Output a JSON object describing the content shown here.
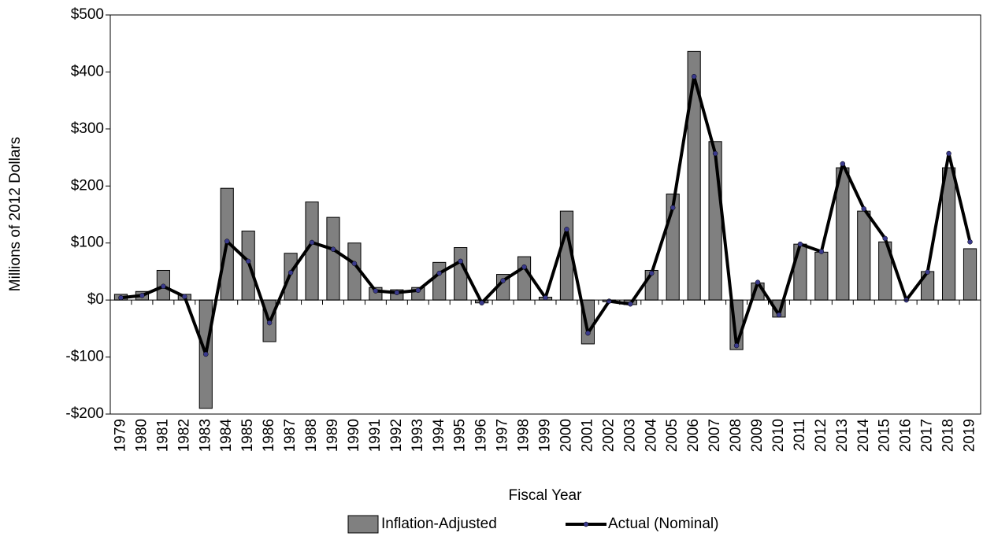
{
  "chart_data": {
    "type": "bar_line",
    "y_label": "Millions of 2012 Dollars",
    "x_label": "Fiscal Year",
    "categories": [
      "1979",
      "1980",
      "1981",
      "1982",
      "1983",
      "1984",
      "1985",
      "1986",
      "1987",
      "1988",
      "1989",
      "1990",
      "1991",
      "1992",
      "1993",
      "1994",
      "1995",
      "1996",
      "1997",
      "1998",
      "1999",
      "2000",
      "2001",
      "2002",
      "2003",
      "2004",
      "2005",
      "2006",
      "2007",
      "2008",
      "2009",
      "2010",
      "2011",
      "2012",
      "2013",
      "2014",
      "2015",
      "2016",
      "2017",
      "2018",
      "2019"
    ],
    "series": [
      {
        "name": "Inflation-Adjusted",
        "type": "bar",
        "color": "#808080",
        "values": [
          10,
          15,
          52,
          10,
          -190,
          196,
          121,
          -73,
          82,
          172,
          145,
          100,
          22,
          18,
          22,
          66,
          92,
          -5,
          45,
          76,
          5,
          156,
          -77,
          -3,
          -8,
          52,
          186,
          436,
          278,
          -87,
          30,
          -30,
          98,
          84,
          232,
          156,
          102,
          0,
          50,
          232,
          90
        ]
      },
      {
        "name": "Actual (Nominal)",
        "type": "line",
        "color": "#000000",
        "marker_color": "#3a3a8c",
        "values": [
          4,
          8,
          24,
          6,
          -95,
          103,
          68,
          -40,
          48,
          101,
          89,
          64,
          16,
          13,
          17,
          47,
          68,
          -5,
          34,
          58,
          4,
          124,
          -58,
          -2,
          -7,
          47,
          162,
          392,
          257,
          -80,
          31,
          -26,
          98,
          85,
          239,
          160,
          108,
          0,
          49,
          257,
          102
        ]
      }
    ],
    "ylim": [
      -200,
      500
    ],
    "yticks": [
      {
        "value": -200,
        "label": "-$200"
      },
      {
        "value": -100,
        "label": "-$100"
      },
      {
        "value": 0,
        "label": "$0"
      },
      {
        "value": 100,
        "label": "$100"
      },
      {
        "value": 200,
        "label": "$200"
      },
      {
        "value": 300,
        "label": "$300"
      },
      {
        "value": 400,
        "label": "$400"
      },
      {
        "value": 500,
        "label": "$500"
      }
    ],
    "legend": "bottom"
  }
}
